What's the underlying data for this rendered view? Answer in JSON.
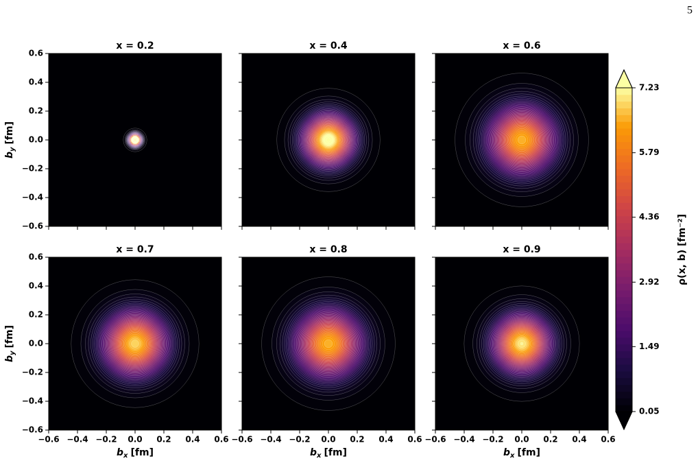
{
  "page_number": "5",
  "chart_data": {
    "type": "contour",
    "xlabel": {
      "symbol": "b",
      "sub": "x",
      "unit": "[fm]"
    },
    "ylabel": {
      "symbol": "b",
      "sub": "y",
      "unit": "[fm]"
    },
    "xlim": [
      -0.6,
      0.6
    ],
    "ylim": [
      -0.6,
      0.6
    ],
    "xticks": [
      {
        "value": -0.6,
        "label": "−0.6"
      },
      {
        "value": -0.4,
        "label": "−0.4"
      },
      {
        "value": -0.2,
        "label": "−0.2"
      },
      {
        "value": 0,
        "label": "0.0"
      },
      0.2,
      0.4,
      0.6
    ],
    "yticks": [
      {
        "value": -0.6,
        "label": "−0.6"
      },
      {
        "value": -0.4,
        "label": "−0.4"
      },
      {
        "value": -0.2,
        "label": "−0.2"
      },
      {
        "value": 0,
        "label": "0.0"
      },
      0.2,
      0.4,
      0.6
    ],
    "colorbar_label": "ρ(x, b) [fm⁻²]",
    "clim": [
      0.05,
      7.23
    ],
    "cticks": [
      0.05,
      1.49,
      2.92,
      4.36,
      5.79,
      7.23
    ],
    "colormap": "inferno",
    "panels": [
      {
        "title": "x = 0.2",
        "peak": 12,
        "width": 0.035
      },
      {
        "title": "x = 0.4",
        "peak": 7.6,
        "width": 0.16
      },
      {
        "title": "x = 0.6",
        "peak": 6.6,
        "width": 0.21
      },
      {
        "title": "x = 0.7",
        "peak": 6.9,
        "width": 0.2
      },
      {
        "title": "x = 0.8",
        "peak": 6.6,
        "width": 0.21
      },
      {
        "title": "x = 0.9",
        "peak": 7.1,
        "width": 0.18
      }
    ]
  }
}
